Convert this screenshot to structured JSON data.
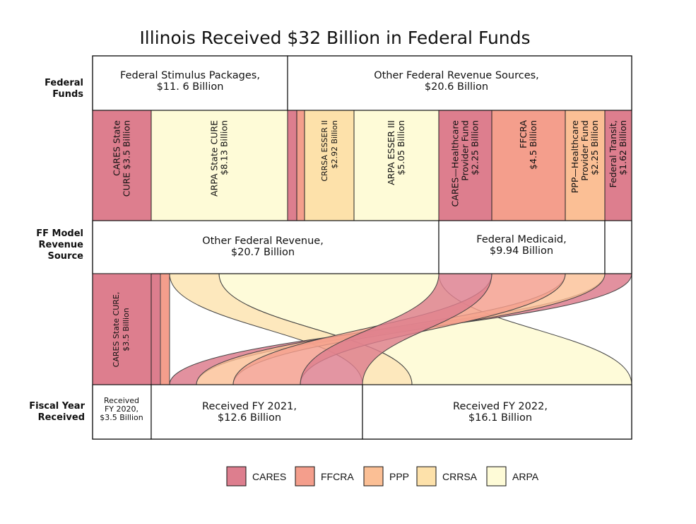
{
  "title": "Illinois Received $32 Billion in Federal Funds",
  "row_labels": {
    "federal_funds": [
      "Federal",
      "Funds"
    ],
    "ff_model": [
      "FF Model",
      "Revenue",
      "Source"
    ],
    "fiscal_year": [
      "Fiscal Year",
      "Received"
    ]
  },
  "top_boxes": {
    "stimulus": [
      "Federal Stimulus Packages,",
      "$11. 6 Billion"
    ],
    "other_sources": [
      "Other Federal Revenue Sources,",
      "$20.6 Billion"
    ]
  },
  "segments": [
    {
      "id": "cares-state-cure",
      "lines": [
        "CARES State",
        "CURE $3.5 Billion"
      ],
      "program": "CARES"
    },
    {
      "id": "arpa-state-cure",
      "lines": [
        "ARPA State CURE",
        "$8.13 Billion"
      ],
      "program": "ARPA"
    },
    {
      "id": "cares-thin",
      "lines": [],
      "program": "CARES"
    },
    {
      "id": "ffcra-thin",
      "lines": [],
      "program": "FFCRA"
    },
    {
      "id": "crrsa-esser-ii",
      "lines": [
        "CRRSA ESSER II",
        "$2.92 Billion"
      ],
      "program": "CRRSA"
    },
    {
      "id": "arpa-esser-iii",
      "lines": [
        "ARPA ESSER III",
        "$5.05 Billion"
      ],
      "program": "ARPA"
    },
    {
      "id": "cares-healthcare",
      "lines": [
        "CARES—Healthcare",
        "Provider Fund",
        "$2.25 Billion"
      ],
      "program": "CARES"
    },
    {
      "id": "ffcra",
      "lines": [
        "FFCRA",
        "$4.5 Billion"
      ],
      "program": "FFCRA"
    },
    {
      "id": "ppp-healthcare",
      "lines": [
        "PPP—Healthcare",
        "Provider Fund",
        "$2.25 Billion"
      ],
      "program": "PPP"
    },
    {
      "id": "federal-transit",
      "lines": [
        "Federal Transit,",
        "$1.62 Billion"
      ],
      "program": "CARES"
    }
  ],
  "middle_boxes": {
    "other_federal_revenue": [
      "Other Federal Revenue,",
      "$20.7 Billion"
    ],
    "federal_medicaid": [
      "Federal Medicaid,",
      "$9.94 Billion"
    ]
  },
  "flow_cares_label": [
    "CARES State CURE,",
    "$3.5 Billion"
  ],
  "fiscal_boxes": {
    "fy2020": [
      "Received",
      "FY 2020,",
      "$3.5 Billion"
    ],
    "fy2021": [
      "Received FY 2021,",
      "$12.6 Billion"
    ],
    "fy2022": [
      "Received FY 2022,",
      "$16.1 Billion"
    ]
  },
  "legend": [
    {
      "label": "CARES",
      "color": "#dd7e8e"
    },
    {
      "label": "FFCRA",
      "color": "#f49e8c"
    },
    {
      "label": "PPP",
      "color": "#fbbf95"
    },
    {
      "label": "CRRSA",
      "color": "#fde1aa"
    },
    {
      "label": "ARPA",
      "color": "#fefbd7"
    }
  ]
}
